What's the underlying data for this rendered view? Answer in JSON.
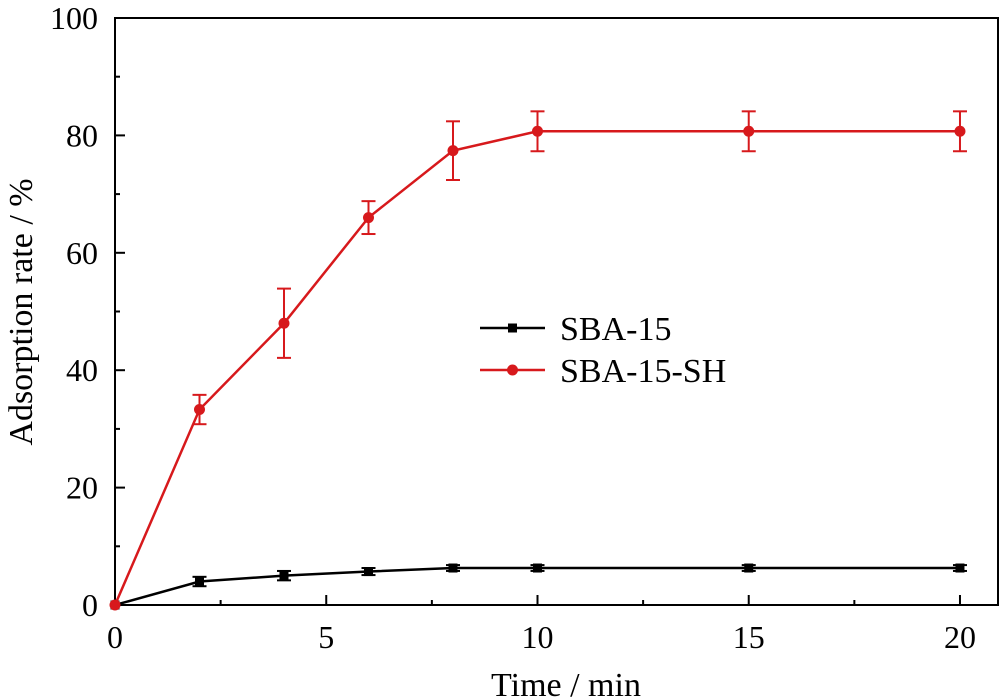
{
  "chart_data": {
    "type": "line",
    "title": "",
    "xlabel": "Time / min",
    "ylabel": "Adsorption rate / %",
    "xlim": [
      0,
      20.9
    ],
    "ylim": [
      0,
      100
    ],
    "xticks": [
      0,
      5,
      10,
      15,
      20
    ],
    "xtick_labels": [
      "0",
      "5",
      "10",
      "15",
      "20"
    ],
    "yticks": [
      0,
      20,
      40,
      60,
      80,
      100
    ],
    "ytick_labels": [
      "0",
      "20",
      "40",
      "60",
      "80",
      "100"
    ],
    "grid": false,
    "legend_position": "center-right",
    "x": [
      0,
      2,
      4,
      6,
      8,
      10,
      15,
      20
    ],
    "series": [
      {
        "name": "SBA-15",
        "color": "#000000",
        "marker": "square",
        "values": [
          0,
          4.0,
          5.0,
          5.7,
          6.3,
          6.3,
          6.3,
          6.3
        ],
        "errors": [
          0,
          0.8,
          0.8,
          0.6,
          0.5,
          0.5,
          0.5,
          0.5
        ]
      },
      {
        "name": "SBA-15-SH",
        "color": "#d7191c",
        "marker": "circle",
        "values": [
          0,
          33.3,
          48.0,
          66.0,
          77.4,
          80.7,
          80.7,
          80.7
        ],
        "errors": [
          0,
          2.5,
          5.9,
          2.8,
          5.0,
          3.4,
          3.4,
          3.4
        ]
      }
    ]
  }
}
